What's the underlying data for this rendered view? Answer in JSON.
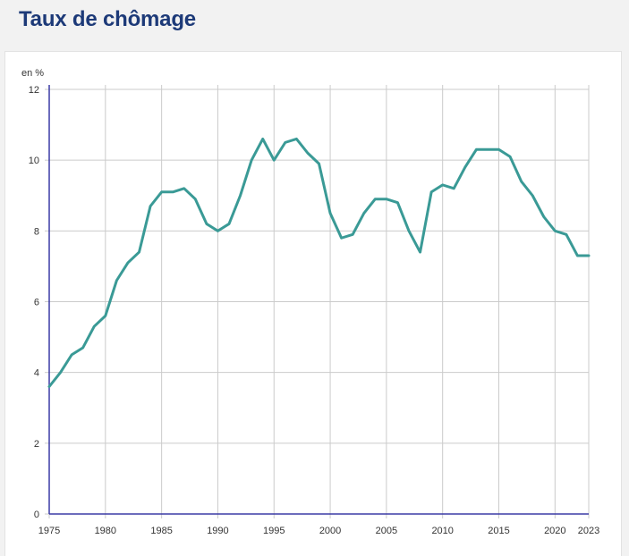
{
  "chart_data": {
    "type": "line",
    "title": "Taux de chômage",
    "ylabel": "en %",
    "xlabel": "",
    "x": [
      1975,
      1976,
      1977,
      1978,
      1979,
      1980,
      1981,
      1982,
      1983,
      1984,
      1985,
      1986,
      1987,
      1988,
      1989,
      1990,
      1991,
      1992,
      1993,
      1994,
      1995,
      1996,
      1997,
      1998,
      1999,
      2000,
      2001,
      2002,
      2003,
      2004,
      2005,
      2006,
      2007,
      2008,
      2009,
      2010,
      2011,
      2012,
      2013,
      2014,
      2015,
      2016,
      2017,
      2018,
      2019,
      2020,
      2021,
      2022,
      2023
    ],
    "series": [
      {
        "values": [
          3.6,
          4.0,
          4.5,
          4.7,
          5.3,
          5.6,
          6.6,
          7.1,
          7.4,
          8.7,
          9.1,
          9.1,
          9.2,
          8.9,
          8.2,
          8.0,
          8.2,
          9.0,
          10.0,
          10.6,
          10.0,
          10.5,
          10.6,
          10.2,
          9.9,
          8.5,
          7.8,
          7.9,
          8.5,
          8.9,
          8.9,
          8.8,
          8.0,
          7.4,
          9.1,
          9.3,
          9.2,
          9.8,
          10.3,
          10.3,
          10.3,
          10.1,
          9.4,
          9.0,
          8.4,
          8.0,
          7.9,
          7.3,
          7.3
        ],
        "color": "#3a9a96"
      }
    ],
    "xticks": [
      1975,
      1980,
      1985,
      1990,
      1995,
      2000,
      2005,
      2010,
      2015,
      2020,
      2023
    ],
    "yticks": [
      0,
      2,
      4,
      6,
      8,
      10,
      12
    ],
    "xlim": [
      1975,
      2023
    ],
    "ylim": [
      0,
      12
    ],
    "grid": true,
    "colors": {
      "axis": "#3b3ba6",
      "grid": "#cbcbcb",
      "title": "#1d3a78"
    }
  }
}
